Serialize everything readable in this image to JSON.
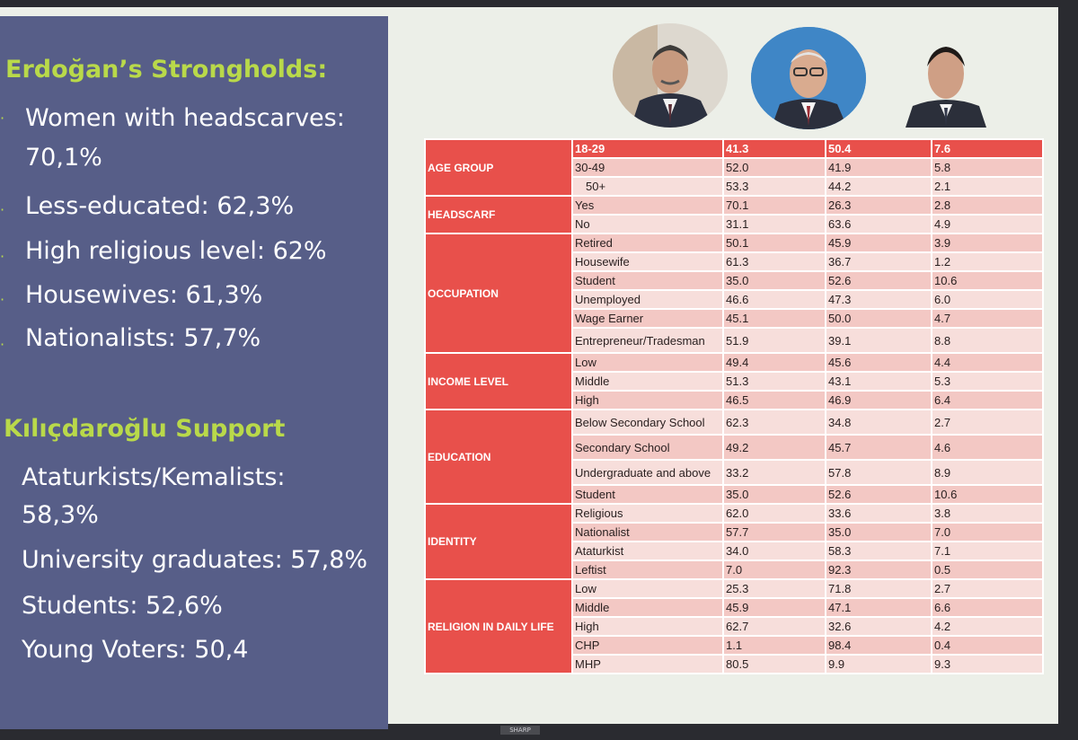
{
  "left": {
    "heading1": "Erdoğan’s Strongholds:",
    "items1": [
      {
        "line1": "Women with headscarves:",
        "line2": "70,1%"
      },
      {
        "line1": "Less-educated: 62,3%"
      },
      {
        "line1": "High religious level: 62%"
      },
      {
        "line1": "Housewives: 61,3%"
      },
      {
        "line1": "Nationalists: 57,7%"
      }
    ],
    "heading2": "Kılıçdaroğlu Support",
    "items2": [
      {
        "line1": "Ataturkists/Kemalists:",
        "line2": "58,3%"
      },
      {
        "line1": "University graduates: 57,8%"
      },
      {
        "line1": "Students: 52,6%"
      },
      {
        "line1": "Young Voters: 50,4"
      }
    ]
  },
  "table": {
    "groups": [
      "AGE GROUP",
      "HEADSCARF",
      "OCCUPATION",
      "INCOME LEVEL",
      "EDUCATION",
      "IDENTITY",
      "RELIGION IN DAILY LIFE"
    ],
    "rows": [
      [
        "18-29",
        "41.3",
        "50.4",
        "7.6"
      ],
      [
        "30-49",
        "52.0",
        "41.9",
        "5.8"
      ],
      [
        "50+",
        "53.3",
        "44.2",
        "2.1"
      ],
      [
        "Yes",
        "70.1",
        "26.3",
        "2.8"
      ],
      [
        "No",
        "31.1",
        "63.6",
        "4.9"
      ],
      [
        "Retired",
        "50.1",
        "45.9",
        "3.9"
      ],
      [
        "Housewife",
        "61.3",
        "36.7",
        "1.2"
      ],
      [
        "Student",
        "35.0",
        "52.6",
        "10.6"
      ],
      [
        "Unemployed",
        "46.6",
        "47.3",
        "6.0"
      ],
      [
        "Wage Earner",
        "45.1",
        "50.0",
        "4.7"
      ],
      [
        "Entrepreneur/Tradesman",
        "51.9",
        "39.1",
        "8.8"
      ],
      [
        "Low",
        "49.4",
        "45.6",
        "4.4"
      ],
      [
        "Middle",
        "51.3",
        "43.1",
        "5.3"
      ],
      [
        "High",
        "46.5",
        "46.9",
        "6.4"
      ],
      [
        "Below Secondary School",
        "62.3",
        "34.8",
        "2.7"
      ],
      [
        "Secondary School",
        "49.2",
        "45.7",
        "4.6"
      ],
      [
        "Undergraduate and above",
        "33.2",
        "57.8",
        "8.9"
      ],
      [
        "Student",
        "35.0",
        "52.6",
        "10.6"
      ],
      [
        "Religious",
        "62.0",
        "33.6",
        "3.8"
      ],
      [
        "Nationalist",
        "57.7",
        "35.0",
        "7.0"
      ],
      [
        "Ataturkist",
        "34.0",
        "58.3",
        "7.1"
      ],
      [
        "Leftist",
        "7.0",
        "92.3",
        "0.5"
      ],
      [
        "Low",
        "25.3",
        "71.8",
        "2.7"
      ],
      [
        "Middle",
        "45.9",
        "47.1",
        "6.6"
      ],
      [
        "High",
        "62.7",
        "32.6",
        "4.2"
      ],
      [
        "CHP",
        "1.1",
        "98.4",
        "0.4"
      ],
      [
        "MHP",
        "80.5",
        "9.9",
        "9.3"
      ]
    ]
  },
  "colors": {
    "panel": "#575e88",
    "heading": "#b9d94a",
    "table_header": "#e8504b",
    "table_cell": "#f3c8c4"
  },
  "monitor_brand": "SHARP"
}
